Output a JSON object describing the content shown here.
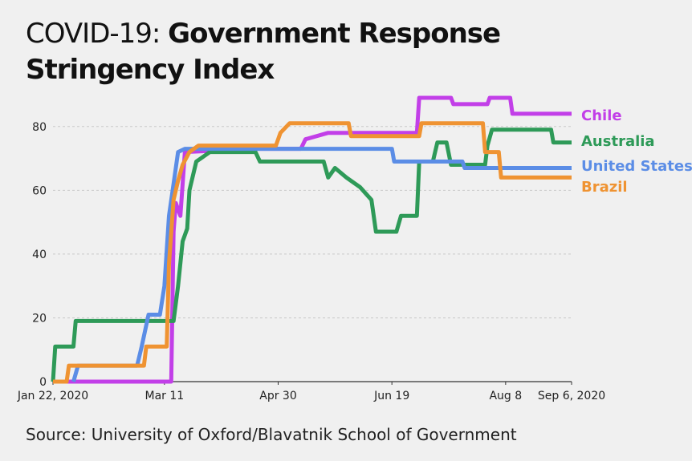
{
  "title_prefix": "COVID-19:",
  "title_main": "Government Response Stringency Index",
  "title_line2": "Stringency Index",
  "source": "Source: University of Oxford/Blavatnik School of Government",
  "chart_data": {
    "type": "line",
    "title": "COVID-19: Government Response Stringency Index",
    "xlabel": "",
    "ylabel": "",
    "ylim": [
      0,
      90
    ],
    "xlim": [
      "2020-01-22",
      "2020-09-06"
    ],
    "yticks": [
      0,
      20,
      40,
      60,
      80
    ],
    "xticks": [
      "Jan 22, 2020",
      "Mar 11",
      "Apr 30",
      "Jun 19",
      "Aug 8",
      "Sep 6, 2020"
    ],
    "xtick_dates": [
      "2020-01-22",
      "2020-03-11",
      "2020-04-30",
      "2020-06-19",
      "2020-08-08",
      "2020-09-06"
    ],
    "grid": true,
    "legend": "end-of-line labels, right",
    "series": [
      {
        "name": "Chile",
        "color": "#c23fe8",
        "points": [
          [
            "2020-01-22",
            0
          ],
          [
            "2020-03-14",
            0
          ],
          [
            "2020-03-15",
            47
          ],
          [
            "2020-03-16",
            56
          ],
          [
            "2020-03-18",
            52
          ],
          [
            "2020-03-20",
            72
          ],
          [
            "2020-04-20",
            73
          ],
          [
            "2020-05-10",
            73
          ],
          [
            "2020-05-12",
            76
          ],
          [
            "2020-05-22",
            78
          ],
          [
            "2020-06-30",
            78
          ],
          [
            "2020-07-01",
            89
          ],
          [
            "2020-07-15",
            89
          ],
          [
            "2020-07-16",
            87
          ],
          [
            "2020-07-31",
            87
          ],
          [
            "2020-08-01",
            89
          ],
          [
            "2020-08-10",
            89
          ],
          [
            "2020-08-11",
            84
          ],
          [
            "2020-09-06",
            84
          ]
        ]
      },
      {
        "name": "Australia",
        "color": "#2e9a58",
        "points": [
          [
            "2020-01-22",
            0
          ],
          [
            "2020-01-23",
            11
          ],
          [
            "2020-01-31",
            11
          ],
          [
            "2020-02-01",
            19
          ],
          [
            "2020-03-15",
            19
          ],
          [
            "2020-03-17",
            30
          ],
          [
            "2020-03-19",
            44
          ],
          [
            "2020-03-21",
            48
          ],
          [
            "2020-03-22",
            60
          ],
          [
            "2020-03-25",
            69
          ],
          [
            "2020-03-31",
            72
          ],
          [
            "2020-04-20",
            72
          ],
          [
            "2020-04-22",
            69
          ],
          [
            "2020-05-20",
            69
          ],
          [
            "2020-05-22",
            64
          ],
          [
            "2020-05-25",
            67
          ],
          [
            "2020-05-30",
            64
          ],
          [
            "2020-06-05",
            61
          ],
          [
            "2020-06-10",
            57
          ],
          [
            "2020-06-12",
            47
          ],
          [
            "2020-06-21",
            47
          ],
          [
            "2020-06-23",
            52
          ],
          [
            "2020-06-30",
            52
          ],
          [
            "2020-07-01",
            69
          ],
          [
            "2020-07-07",
            69
          ],
          [
            "2020-07-09",
            75
          ],
          [
            "2020-07-13",
            75
          ],
          [
            "2020-07-15",
            68
          ],
          [
            "2020-07-30",
            68
          ],
          [
            "2020-07-31",
            74
          ],
          [
            "2020-08-02",
            79
          ],
          [
            "2020-08-28",
            79
          ],
          [
            "2020-08-29",
            75
          ],
          [
            "2020-09-06",
            75
          ]
        ]
      },
      {
        "name": "United States",
        "color": "#5b8de6",
        "points": [
          [
            "2020-01-31",
            0
          ],
          [
            "2020-02-02",
            5
          ],
          [
            "2020-02-28",
            5
          ],
          [
            "2020-03-01",
            11
          ],
          [
            "2020-03-04",
            21
          ],
          [
            "2020-03-09",
            21
          ],
          [
            "2020-03-11",
            30
          ],
          [
            "2020-03-13",
            52
          ],
          [
            "2020-03-15",
            62
          ],
          [
            "2020-03-17",
            72
          ],
          [
            "2020-03-20",
            73
          ],
          [
            "2020-06-19",
            73
          ],
          [
            "2020-06-20",
            69
          ],
          [
            "2020-07-20",
            69
          ],
          [
            "2020-07-21",
            67
          ],
          [
            "2020-09-06",
            67
          ]
        ]
      },
      {
        "name": "Brazil",
        "color": "#ef9332",
        "points": [
          [
            "2020-01-22",
            0
          ],
          [
            "2020-01-28",
            0
          ],
          [
            "2020-01-29",
            5
          ],
          [
            "2020-03-02",
            5
          ],
          [
            "2020-03-03",
            11
          ],
          [
            "2020-03-12",
            11
          ],
          [
            "2020-03-13",
            37
          ],
          [
            "2020-03-15",
            57
          ],
          [
            "2020-03-17",
            63
          ],
          [
            "2020-03-19",
            68
          ],
          [
            "2020-03-22",
            72
          ],
          [
            "2020-03-26",
            74
          ],
          [
            "2020-04-29",
            74
          ],
          [
            "2020-05-01",
            78
          ],
          [
            "2020-05-05",
            81
          ],
          [
            "2020-05-31",
            81
          ],
          [
            "2020-06-01",
            77
          ],
          [
            "2020-07-01",
            77
          ],
          [
            "2020-07-02",
            81
          ],
          [
            "2020-07-29",
            81
          ],
          [
            "2020-07-30",
            72
          ],
          [
            "2020-08-05",
            72
          ],
          [
            "2020-08-06",
            64
          ],
          [
            "2020-09-06",
            64
          ]
        ]
      }
    ]
  }
}
